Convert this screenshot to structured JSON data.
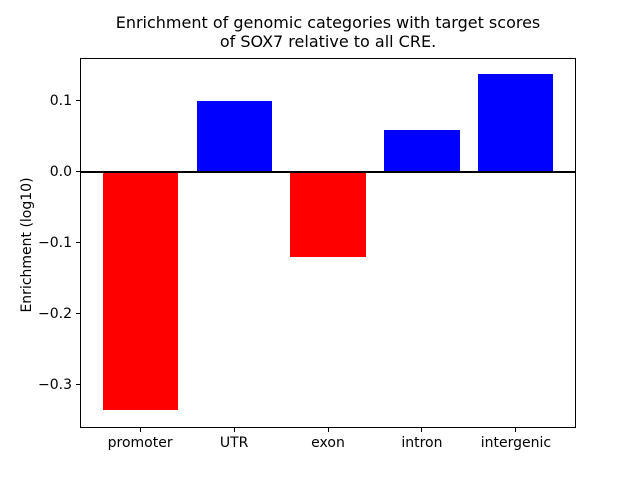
{
  "figure": {
    "background": "#ffffff"
  },
  "chart_data": {
    "type": "bar",
    "title": "Enrichment of genomic categories with target scores\nof SOX7 relative to all CRE.",
    "xlabel": "",
    "ylabel": "Enrichment (log10)",
    "categories": [
      "promoter",
      "UTR",
      "exon",
      "intron",
      "intergenic"
    ],
    "values": [
      -0.336,
      0.099,
      -0.121,
      0.058,
      0.137
    ],
    "bar_colors": [
      "#ff0000",
      "#0000ff",
      "#ff0000",
      "#0000ff",
      "#0000ff"
    ],
    "positive_color": "#0000ff",
    "negative_color": "#ff0000",
    "bar_width": 0.8,
    "ylim": [
      -0.361,
      0.16
    ],
    "xlim": [
      -0.64,
      4.64
    ],
    "yticks": [
      -0.3,
      -0.2,
      -0.1,
      0.0,
      0.1
    ],
    "ytick_labels": [
      "−0.3",
      "−0.2",
      "−0.1",
      "0.0",
      "0.1"
    ],
    "zero_line": true,
    "zero_line_color": "#000000",
    "grid": false,
    "legend": null,
    "axes_color": "#000000"
  }
}
